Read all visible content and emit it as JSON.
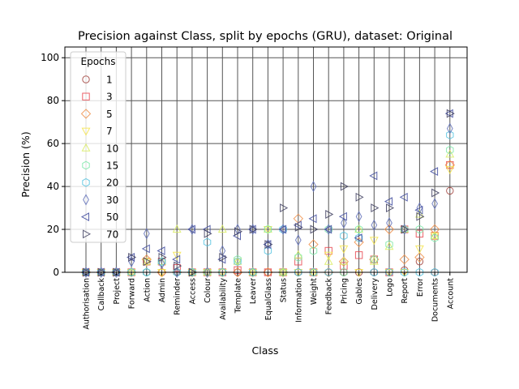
{
  "chart_data": {
    "type": "scatter",
    "title": "Precision against Class, split by epochs (GRU), dataset: Original",
    "xlabel": "Class",
    "ylabel": "Precision (%)",
    "ylim": [
      0,
      105
    ],
    "yticks": [
      0,
      20,
      40,
      60,
      80,
      100
    ],
    "grid": true,
    "legend_title": "Epochs",
    "legend_position": "top-left",
    "categories": [
      "Authorisation",
      "Callback",
      "Project",
      "Forward",
      "Action",
      "Admin",
      "Reminder",
      "Access",
      "Colour",
      "Availability",
      "Template",
      "Leaver",
      "EqualGlass",
      "Status",
      "Information",
      "Weight",
      "Feedback",
      "Pricing",
      "Gables",
      "Delivery",
      "Logo",
      "Report",
      "Error",
      "Documents",
      "Account"
    ],
    "series": [
      {
        "name": "1",
        "marker": "circle",
        "color": "#a0403a",
        "values": [
          0,
          0,
          0,
          0,
          0,
          0,
          0,
          0,
          0,
          0,
          0,
          0,
          0,
          0,
          0,
          0,
          0,
          0,
          0,
          0,
          0,
          1,
          5,
          0,
          38
        ]
      },
      {
        "name": "3",
        "marker": "square",
        "color": "#e8474f",
        "values": [
          0,
          0,
          0,
          0,
          5,
          5,
          2,
          0,
          0,
          0,
          1,
          0,
          0,
          0,
          5,
          0,
          10,
          3,
          8,
          6,
          0,
          20,
          18,
          17,
          50
        ]
      },
      {
        "name": "5",
        "marker": "diamond",
        "color": "#f0914a",
        "values": [
          0,
          0,
          0,
          0,
          6,
          0,
          0,
          0,
          0,
          0,
          0,
          0,
          0,
          0,
          25,
          13,
          0,
          5,
          14,
          6,
          20,
          6,
          7,
          20,
          50
        ]
      },
      {
        "name": "7",
        "marker": "triangle_down",
        "color": "#f5e44a",
        "values": [
          0,
          0,
          0,
          0,
          5,
          0,
          8,
          0,
          0,
          0,
          5,
          0,
          20,
          0,
          0,
          0,
          8,
          11,
          0,
          15,
          0,
          0,
          11,
          17,
          48
        ]
      },
      {
        "name": "10",
        "marker": "triangle_up",
        "color": "#d9ec60",
        "values": [
          0,
          0,
          0,
          0,
          5,
          5,
          20,
          0,
          0,
          20,
          5,
          0,
          20,
          0,
          8,
          0,
          5,
          5,
          20,
          5,
          12,
          20,
          27,
          17,
          55
        ]
      },
      {
        "name": "15",
        "marker": "hexagon",
        "color": "#7de8a8",
        "values": [
          0,
          0,
          0,
          0,
          0,
          5,
          0,
          0,
          0,
          0,
          6,
          0,
          20,
          0,
          7,
          10,
          20,
          0,
          20,
          6,
          13,
          20,
          20,
          16,
          57
        ]
      },
      {
        "name": "20",
        "marker": "hexagon",
        "color": "#55c3e0",
        "values": [
          0,
          0,
          0,
          0,
          0,
          5,
          0,
          0,
          14,
          0,
          5,
          0,
          10,
          20,
          0,
          0,
          0,
          17,
          16,
          0,
          0,
          0,
          0,
          0,
          64
        ]
      },
      {
        "name": "30",
        "marker": "thin_diamond",
        "color": "#6070b8",
        "values": [
          0,
          0,
          0,
          5,
          18,
          4,
          0,
          20,
          0,
          10,
          20,
          20,
          13,
          20,
          15,
          40,
          20,
          23,
          26,
          22,
          23,
          20,
          30,
          32,
          67
        ]
      },
      {
        "name": "50",
        "marker": "triangle_left",
        "color": "#3e4a9e",
        "values": [
          0,
          0,
          0,
          7,
          11,
          10,
          6,
          20,
          20,
          6,
          17,
          20,
          13,
          20,
          22,
          25,
          20,
          26,
          16,
          45,
          33,
          35,
          29,
          47,
          74
        ]
      },
      {
        "name": "70",
        "marker": "triangle_right",
        "color": "#404060",
        "values": [
          0,
          0,
          0,
          7,
          5,
          7,
          3,
          0,
          18,
          7,
          19,
          20,
          13,
          30,
          21,
          20,
          27,
          40,
          35,
          30,
          30,
          20,
          26,
          37,
          74
        ]
      }
    ]
  }
}
